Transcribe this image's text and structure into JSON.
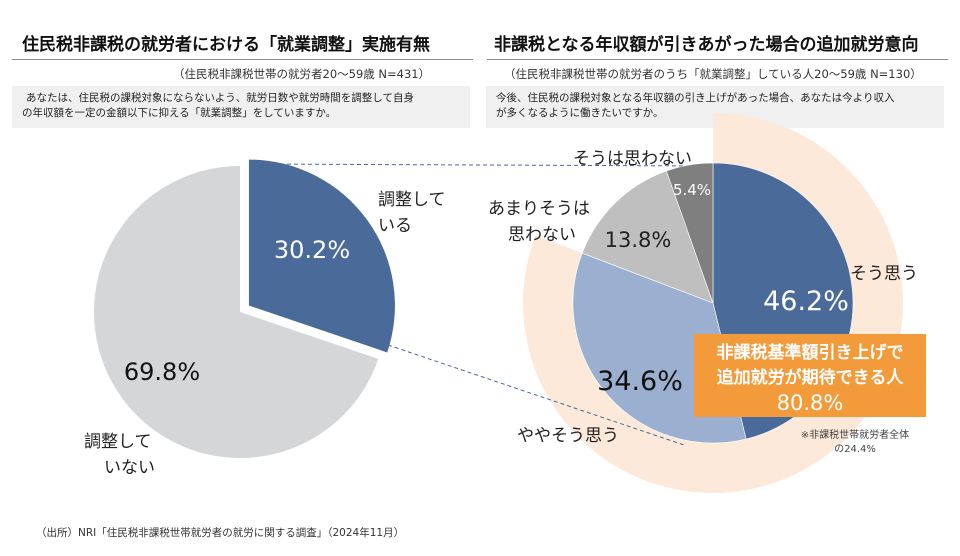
{
  "left_panel": {
    "title": "住民税非課税の就労者における「就業調整」実施有無",
    "sample": "（住民税非課税世帯の就労者20～59歳 N=431）",
    "question_line1": "あなたは、住民税の課税対象にならないよう、就労日数や就労時間を調整して自身",
    "question_line2": "の年収額を一定の金額以下に抑える「就業調整」をしていますか。"
  },
  "right_panel": {
    "title": "非課税となる年収額が引きあがった場合の追加就労意向",
    "sample": "（住民税非課税世帯の就労者のうち「就業調整」している人20～59歳 N=130）",
    "question_line1": "今後、住民税の課税対象となる年収額の引き上げがあった場合、あなたは今より収入",
    "question_line2": "が多くなるように働きたいですか。"
  },
  "source": "（出所）NRI「住民税非課税世帯就労者の就労に関する調査」（2024年11月）",
  "chart_data": [
    {
      "type": "pie",
      "title": "住民税非課税の就労者における「就業調整」実施有無",
      "categories": [
        "調整している",
        "調整していない"
      ],
      "values": [
        30.2,
        69.8
      ],
      "labels_pct": [
        "30.2%",
        "69.8%"
      ],
      "category_label_lines": [
        [
          "調整して",
          "いる"
        ],
        [
          "調整して",
          "いない"
        ]
      ],
      "colors": [
        "#4a6a9a",
        "#d5d6d8"
      ],
      "exploded": "調整している",
      "legend": "none"
    },
    {
      "type": "pie",
      "title": "非課税となる年収額が引きあがった場合の追加就労意向",
      "categories": [
        "そう思う",
        "ややそう思う",
        "あまりそうは思わない",
        "そうは思わない"
      ],
      "values": [
        46.2,
        34.6,
        13.8,
        5.4
      ],
      "labels_pct": [
        "46.2%",
        "34.6%",
        "13.8%",
        "5.4%"
      ],
      "category_label_lines": [
        [
          "そう思う"
        ],
        [
          "ややそう思う"
        ],
        [
          "あまりそうは",
          "思わない"
        ],
        [
          "そうは思わない"
        ]
      ],
      "colors": [
        "#4a6a9a",
        "#9bb0d0",
        "#bfbfbf",
        "#7f7f7f"
      ],
      "highlight_ring": {
        "covers": [
          "そう思う",
          "ややそう思う"
        ],
        "total": 80.8,
        "color": "#fde9d9"
      },
      "callout": {
        "line1": "非課税基準額引き上げで",
        "line2": "追加就労が期待できる人",
        "value": "80.8%",
        "color": "#f39a3a"
      },
      "note_line1": "※非課税世帯就労者全体",
      "note_line2": "の24.4%",
      "legend": "none"
    }
  ]
}
